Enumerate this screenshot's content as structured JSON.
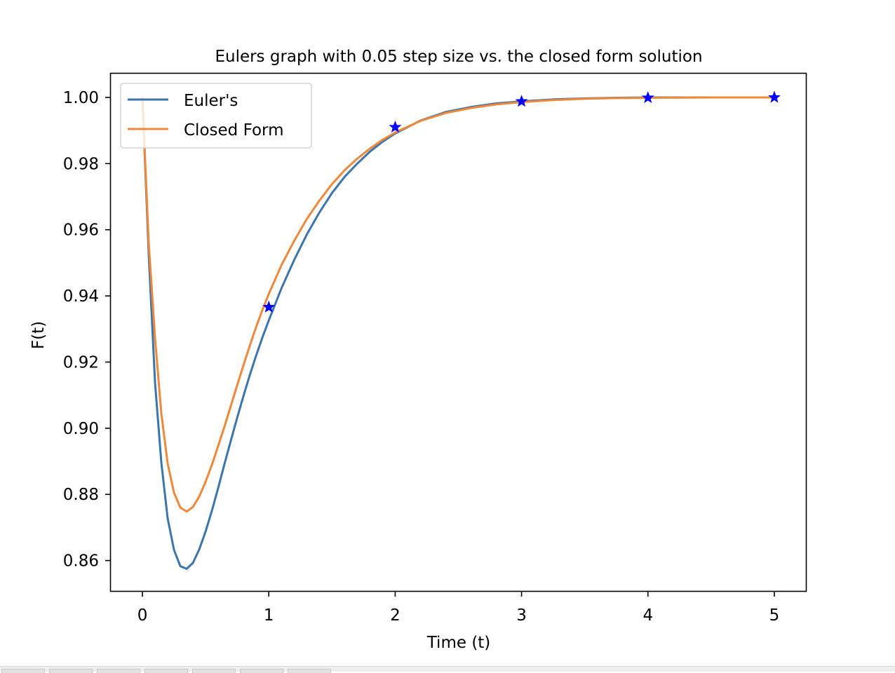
{
  "chart_data": {
    "type": "line",
    "title": "Eulers graph with 0.05 step size vs. the closed form solution",
    "xlabel": "Time (t)",
    "ylabel": "F(t)",
    "xlim": [
      -0.25,
      5.25
    ],
    "ylim": [
      0.8508,
      1.0072
    ],
    "xticks": [
      0,
      1,
      2,
      3,
      4,
      5
    ],
    "xtick_labels": [
      "0",
      "1",
      "2",
      "3",
      "4",
      "5"
    ],
    "yticks": [
      0.86,
      0.88,
      0.9,
      0.92,
      0.94,
      0.96,
      0.98,
      1.0
    ],
    "ytick_labels": [
      "0.86",
      "0.88",
      "0.90",
      "0.92",
      "0.94",
      "0.96",
      "0.98",
      "1.00"
    ],
    "grid": false,
    "legend_position": "upper-left",
    "series": [
      {
        "name": "Euler's",
        "color": "#3a75ae",
        "x": [
          0,
          0.05,
          0.1,
          0.15,
          0.2,
          0.25,
          0.3,
          0.35,
          0.4,
          0.45,
          0.5,
          0.55,
          0.6,
          0.65,
          0.7,
          0.75,
          0.8,
          0.85,
          0.9,
          0.95,
          1.0,
          1.1,
          1.2,
          1.3,
          1.4,
          1.5,
          1.6,
          1.7,
          1.8,
          1.9,
          2.0,
          2.2,
          2.4,
          2.6,
          2.8,
          3.0,
          3.25,
          3.5,
          3.75,
          4.0,
          4.5,
          5.0
        ],
        "y": [
          1.0,
          0.9525,
          0.9137,
          0.8895,
          0.8727,
          0.8632,
          0.8583,
          0.8575,
          0.8593,
          0.8634,
          0.8688,
          0.8751,
          0.882,
          0.8893,
          0.8963,
          0.9032,
          0.9098,
          0.9161,
          0.922,
          0.9275,
          0.9326,
          0.9423,
          0.9508,
          0.9585,
          0.9652,
          0.9711,
          0.976,
          0.98,
          0.9836,
          0.9866,
          0.9891,
          0.993,
          0.9956,
          0.9971,
          0.9982,
          0.9988,
          0.9994,
          0.9997,
          0.9999,
          1.0,
          1.0,
          1.0
        ]
      },
      {
        "name": "Closed Form",
        "color": "#f0883a",
        "x": [
          0,
          0.05,
          0.1,
          0.15,
          0.2,
          0.25,
          0.3,
          0.35,
          0.4,
          0.45,
          0.5,
          0.55,
          0.6,
          0.65,
          0.7,
          0.75,
          0.8,
          0.85,
          0.9,
          0.95,
          1.0,
          1.1,
          1.2,
          1.3,
          1.4,
          1.5,
          1.6,
          1.7,
          1.8,
          1.9,
          2.0,
          2.2,
          2.4,
          2.6,
          2.8,
          3.0,
          3.25,
          3.5,
          3.75,
          4.0,
          4.5,
          5.0
        ],
        "y": [
          1.0,
          0.956,
          0.9272,
          0.9043,
          0.8893,
          0.8805,
          0.876,
          0.8748,
          0.8762,
          0.8794,
          0.8838,
          0.889,
          0.8947,
          0.9006,
          0.9068,
          0.913,
          0.9191,
          0.925,
          0.9306,
          0.9358,
          0.9406,
          0.9493,
          0.9566,
          0.9632,
          0.9688,
          0.9738,
          0.978,
          0.9815,
          0.9845,
          0.9872,
          0.9894,
          0.9929,
          0.9953,
          0.9968,
          0.9979,
          0.9986,
          0.9992,
          0.9996,
          0.9998,
          0.9999,
          1.0,
          1.0
        ]
      },
      {
        "name": "",
        "color": "#0000ff",
        "marker": "star",
        "x": [
          1,
          2,
          3,
          4,
          5
        ],
        "y": [
          0.9366,
          0.991,
          0.9988,
          0.9999,
          1.0
        ]
      }
    ]
  },
  "taskbar": {
    "button_count": 7
  }
}
